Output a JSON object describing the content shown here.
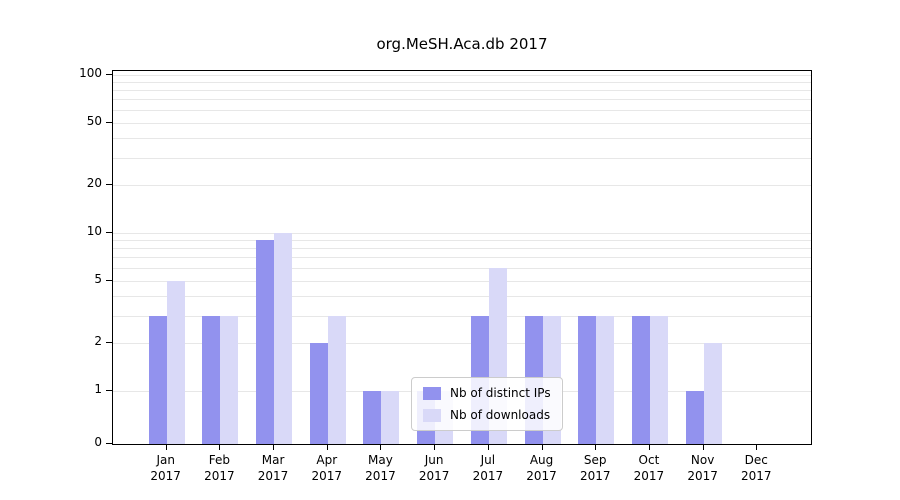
{
  "chart_data": {
    "type": "bar",
    "title": "org.MeSH.Aca.db 2017",
    "year": "2017",
    "categories": [
      "Jan",
      "Feb",
      "Mar",
      "Apr",
      "May",
      "Jun",
      "Jul",
      "Aug",
      "Sep",
      "Oct",
      "Nov",
      "Dec"
    ],
    "series": [
      {
        "name": "Nb of distinct IPs",
        "color": "#9292ee",
        "values": [
          3,
          3,
          9,
          2,
          1,
          1,
          3,
          3,
          3,
          3,
          1,
          0
        ]
      },
      {
        "name": "Nb of downloads",
        "color": "#d9d9f8",
        "values": [
          5,
          3,
          10,
          3,
          1,
          1,
          6,
          3,
          3,
          3,
          2,
          0
        ]
      }
    ],
    "yticks": [
      0,
      1,
      2,
      5,
      10,
      20,
      50,
      100
    ],
    "yscale": "log",
    "ylim": [
      0,
      100
    ],
    "grid": true,
    "legend_position": "lower center"
  }
}
